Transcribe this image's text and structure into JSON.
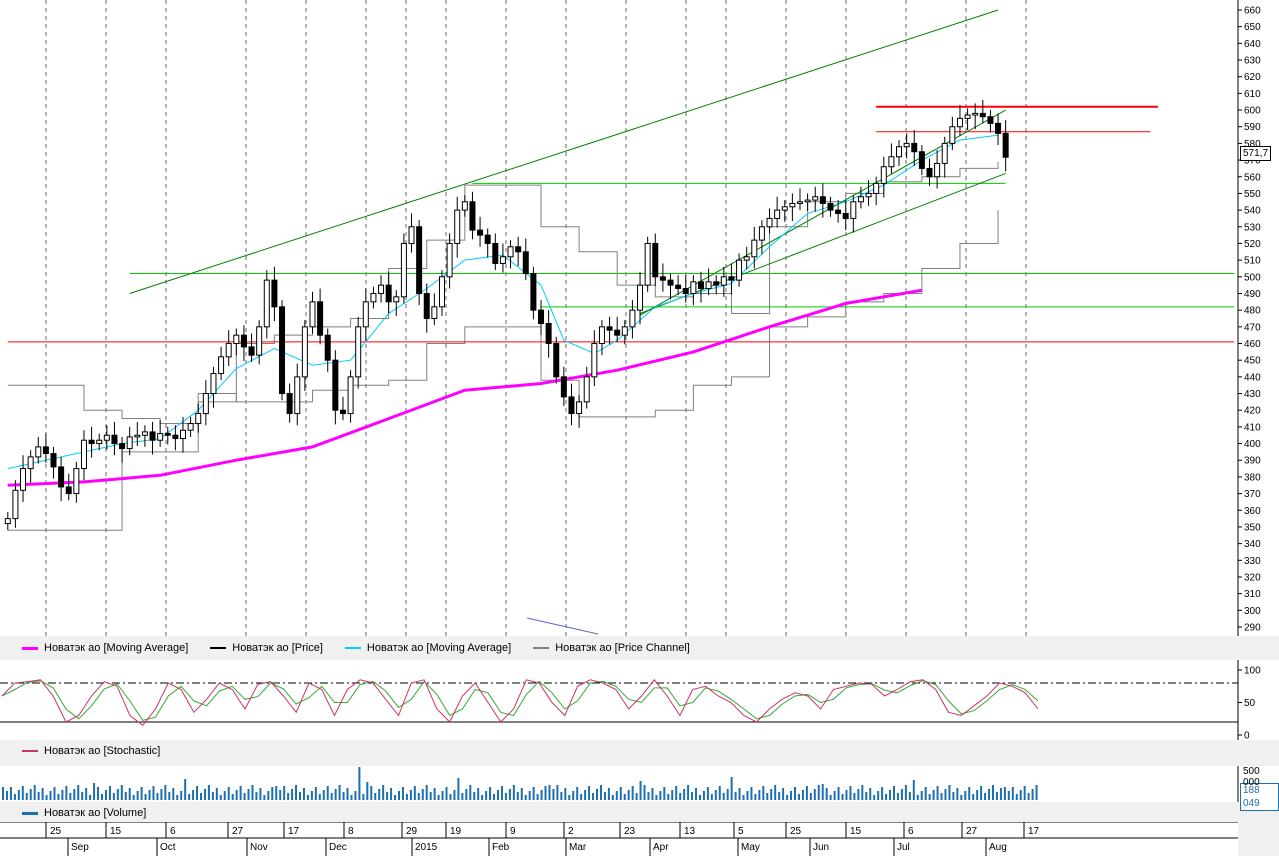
{
  "chart_data": [
    {
      "type": "candlestick",
      "title": "",
      "ylim": [
        285,
        662
      ],
      "y_ticks": [
        290,
        300,
        310,
        320,
        330,
        340,
        350,
        360,
        370,
        380,
        390,
        400,
        410,
        420,
        430,
        440,
        450,
        460,
        470,
        480,
        490,
        500,
        510,
        520,
        530,
        540,
        550,
        560,
        570,
        580,
        590,
        600,
        610,
        620,
        630,
        640,
        650,
        660
      ],
      "last_value_label": "571,7",
      "grid": "vertical dashed",
      "price_series": [
        [
          0,
          355
        ],
        [
          1,
          372
        ],
        [
          2,
          385
        ],
        [
          3,
          392
        ],
        [
          4,
          398
        ],
        [
          5,
          394
        ],
        [
          6,
          386
        ],
        [
          7,
          374
        ],
        [
          8,
          370
        ],
        [
          9,
          385
        ],
        [
          10,
          402
        ],
        [
          11,
          400
        ],
        [
          12,
          402
        ],
        [
          13,
          405
        ],
        [
          14,
          400
        ],
        [
          15,
          397
        ],
        [
          16,
          404
        ],
        [
          17,
          405
        ],
        [
          18,
          407
        ],
        [
          19,
          402
        ],
        [
          20,
          406
        ],
        [
          21,
          405
        ],
        [
          22,
          403
        ],
        [
          23,
          408
        ],
        [
          24,
          412
        ],
        [
          25,
          418
        ],
        [
          26,
          430
        ],
        [
          27,
          442
        ],
        [
          28,
          452
        ],
        [
          29,
          460
        ],
        [
          30,
          465
        ],
        [
          31,
          458
        ],
        [
          32,
          453
        ],
        [
          33,
          470
        ],
        [
          34,
          498
        ],
        [
          35,
          482
        ],
        [
          36,
          430
        ],
        [
          37,
          418
        ],
        [
          38,
          440
        ],
        [
          39,
          470
        ],
        [
          40,
          485
        ],
        [
          41,
          465
        ],
        [
          42,
          450
        ],
        [
          43,
          420
        ],
        [
          44,
          418
        ],
        [
          45,
          440
        ],
        [
          46,
          470
        ],
        [
          47,
          485
        ],
        [
          48,
          490
        ],
        [
          49,
          495
        ],
        [
          50,
          485
        ],
        [
          51,
          488
        ],
        [
          52,
          520
        ],
        [
          53,
          530
        ],
        [
          54,
          490
        ],
        [
          55,
          475
        ],
        [
          56,
          482
        ],
        [
          57,
          500
        ],
        [
          58,
          520
        ],
        [
          59,
          540
        ],
        [
          60,
          545
        ],
        [
          61,
          528
        ],
        [
          62,
          525
        ],
        [
          63,
          520
        ],
        [
          64,
          508
        ],
        [
          65,
          512
        ],
        [
          66,
          518
        ],
        [
          67,
          515
        ],
        [
          68,
          502
        ],
        [
          69,
          480
        ],
        [
          70,
          472
        ],
        [
          71,
          460
        ],
        [
          72,
          440
        ],
        [
          73,
          428
        ],
        [
          74,
          418
        ],
        [
          75,
          425
        ],
        [
          76,
          440
        ],
        [
          77,
          460
        ],
        [
          78,
          470
        ],
        [
          79,
          468
        ],
        [
          80,
          465
        ],
        [
          81,
          470
        ],
        [
          82,
          480
        ],
        [
          83,
          495
        ],
        [
          84,
          520
        ],
        [
          85,
          500
        ],
        [
          86,
          498
        ],
        [
          87,
          495
        ],
        [
          88,
          493
        ],
        [
          89,
          490
        ],
        [
          90,
          497
        ],
        [
          91,
          493
        ],
        [
          92,
          497
        ],
        [
          93,
          495
        ],
        [
          94,
          500
        ],
        [
          95,
          498
        ],
        [
          96,
          510
        ],
        [
          97,
          512
        ],
        [
          98,
          522
        ],
        [
          99,
          530
        ],
        [
          100,
          535
        ],
        [
          101,
          540
        ],
        [
          102,
          542
        ],
        [
          103,
          544
        ],
        [
          104,
          545
        ],
        [
          105,
          546
        ],
        [
          106,
          548
        ],
        [
          107,
          544
        ],
        [
          108,
          540
        ],
        [
          109,
          538
        ],
        [
          110,
          535
        ],
        [
          111,
          545
        ],
        [
          112,
          548
        ],
        [
          113,
          550
        ],
        [
          114,
          556
        ],
        [
          115,
          566
        ],
        [
          116,
          572
        ],
        [
          117,
          578
        ],
        [
          118,
          580
        ],
        [
          119,
          575
        ],
        [
          120,
          565
        ],
        [
          121,
          560
        ],
        [
          122,
          568
        ],
        [
          123,
          580
        ],
        [
          124,
          590
        ],
        [
          125,
          595
        ],
        [
          126,
          597
        ],
        [
          127,
          598
        ],
        [
          128,
          596
        ],
        [
          129,
          592
        ],
        [
          130,
          586
        ],
        [
          131,
          571.7
        ]
      ],
      "moving_average_slow": [
        [
          0,
          375
        ],
        [
          10,
          377
        ],
        [
          20,
          381
        ],
        [
          30,
          390
        ],
        [
          40,
          398
        ],
        [
          50,
          415
        ],
        [
          60,
          432
        ],
        [
          65,
          434
        ],
        [
          70,
          436
        ],
        [
          80,
          444
        ],
        [
          90,
          455
        ],
        [
          100,
          470
        ],
        [
          110,
          484
        ],
        [
          120,
          492
        ]
      ],
      "moving_average_fast": [
        [
          0,
          385
        ],
        [
          5,
          390
        ],
        [
          10,
          395
        ],
        [
          15,
          400
        ],
        [
          20,
          403
        ],
        [
          25,
          420
        ],
        [
          30,
          445
        ],
        [
          35,
          457
        ],
        [
          40,
          447
        ],
        [
          45,
          450
        ],
        [
          50,
          478
        ],
        [
          55,
          493
        ],
        [
          60,
          510
        ],
        [
          65,
          513
        ],
        [
          70,
          495
        ],
        [
          73,
          462
        ],
        [
          77,
          454
        ],
        [
          80,
          462
        ],
        [
          85,
          482
        ],
        [
          90,
          490
        ],
        [
          95,
          496
        ],
        [
          100,
          518
        ],
        [
          105,
          538
        ],
        [
          110,
          545
        ],
        [
          115,
          555
        ],
        [
          120,
          570
        ],
        [
          125,
          582
        ],
        [
          130,
          585
        ]
      ],
      "price_channel_upper": [
        [
          0,
          435
        ],
        [
          10,
          420
        ],
        [
          15,
          415
        ],
        [
          20,
          412
        ],
        [
          25,
          425
        ],
        [
          30,
          460
        ],
        [
          35,
          465
        ],
        [
          40,
          470
        ],
        [
          45,
          475
        ],
        [
          50,
          505
        ],
        [
          55,
          522
        ],
        [
          60,
          555
        ],
        [
          65,
          555
        ],
        [
          70,
          530
        ],
        [
          75,
          515
        ],
        [
          80,
          495
        ],
        [
          85,
          488
        ],
        [
          90,
          490
        ],
        [
          95,
          478
        ],
        [
          100,
          530
        ],
        [
          105,
          545
        ],
        [
          110,
          550
        ],
        [
          115,
          557
        ],
        [
          120,
          560
        ],
        [
          125,
          565
        ],
        [
          130,
          569
        ]
      ],
      "price_channel_lower": [
        [
          0,
          348
        ],
        [
          8,
          348
        ],
        [
          12,
          348
        ],
        [
          15,
          395
        ],
        [
          20,
          395
        ],
        [
          25,
          430
        ],
        [
          30,
          425
        ],
        [
          35,
          425
        ],
        [
          40,
          432
        ],
        [
          45,
          435
        ],
        [
          50,
          438
        ],
        [
          55,
          460
        ],
        [
          60,
          470
        ],
        [
          65,
          470
        ],
        [
          70,
          438
        ],
        [
          75,
          416
        ],
        [
          80,
          416
        ],
        [
          85,
          420
        ],
        [
          90,
          435
        ],
        [
          95,
          440
        ],
        [
          100,
          470
        ],
        [
          105,
          476
        ],
        [
          110,
          485
        ],
        [
          115,
          490
        ],
        [
          120,
          505
        ],
        [
          125,
          520
        ],
        [
          130,
          540
        ]
      ],
      "trendlines": [
        {
          "from": [
            16,
            490
          ],
          "to": [
            130,
            660
          ],
          "color": "#008000"
        },
        {
          "from": [
            83,
            477
          ],
          "to": [
            131,
            600
          ],
          "color": "#008000"
        },
        {
          "from": [
            83,
            478
          ],
          "to": [
            131,
            562
          ],
          "color": "#008000"
        }
      ],
      "horizontal_levels": [
        {
          "y": 602,
          "x_from": 114,
          "x_to": 151,
          "color": "#ff0000"
        },
        {
          "y": 587,
          "x_from": 114,
          "x_to": 150,
          "color": "#ff0000"
        },
        {
          "y": 461,
          "x_from": 0,
          "x_to": 161,
          "color": "#ff0000"
        },
        {
          "y": 556,
          "x_from": 61,
          "x_to": 131,
          "color": "#00cc00"
        },
        {
          "y": 502,
          "x_from": 16,
          "x_to": 161,
          "color": "#00cc00"
        },
        {
          "y": 482,
          "x_from": 70,
          "x_to": 161,
          "color": "#00cc00"
        }
      ],
      "legend": [
        {
          "name": "Новатэк ао [Moving Average]",
          "color": "#ff00ff"
        },
        {
          "name": "Новатэк ао [Price]",
          "color": "#000000"
        },
        {
          "name": "Новатэк ао [Moving Average]",
          "color": "#00ccff"
        },
        {
          "name": "Новатэк ао [Price Channel]",
          "color": "#808080"
        }
      ]
    },
    {
      "type": "line",
      "title": "",
      "ylim": [
        0,
        100
      ],
      "y_ticks": [
        0,
        50,
        100
      ],
      "reference_lines": [
        80,
        20
      ],
      "series_values": [
        60,
        80,
        82,
        85,
        60,
        20,
        30,
        60,
        82,
        75,
        30,
        15,
        40,
        80,
        70,
        35,
        55,
        80,
        70,
        40,
        78,
        82,
        60,
        35,
        80,
        70,
        30,
        70,
        85,
        80,
        55,
        30,
        80,
        85,
        40,
        20,
        60,
        80,
        50,
        20,
        40,
        85,
        80,
        50,
        30,
        75,
        85,
        80,
        70,
        40,
        60,
        85,
        60,
        30,
        70,
        75,
        60,
        50,
        30,
        20,
        40,
        55,
        65,
        60,
        40,
        70,
        75,
        80,
        78,
        60,
        70,
        82,
        85,
        70,
        35,
        30,
        45,
        60,
        80,
        75,
        65,
        40
      ],
      "legend": [
        {
          "name": "Новатэк ао [Stochastic]",
          "color": "#cc3366"
        }
      ]
    },
    {
      "type": "bar",
      "title": "",
      "y_ticks_labels": [
        "500 000"
      ],
      "last_value_label": "188 049",
      "legend": [
        {
          "name": "Новатэк ао [Volume]",
          "color": "#1c6fb0"
        }
      ]
    }
  ],
  "x_axis": {
    "day_labels": [
      "25",
      "15",
      "6",
      "27",
      "17",
      "8",
      "29",
      "19",
      "9",
      "2",
      "23",
      "13",
      "5",
      "25",
      "15",
      "6",
      "27",
      "17"
    ],
    "month_labels": [
      "Sep",
      "Oct",
      "Nov",
      "Dec",
      "2015",
      "Feb",
      "Mar",
      "Apr",
      "May",
      "Jun",
      "Jul",
      "Aug"
    ]
  },
  "colors": {
    "ma_slow": "#ff00ff",
    "ma_fast": "#00ccff",
    "channel": "#808080",
    "trend": "#008000",
    "level_red": "#ff0000",
    "level_green": "#00cc00",
    "stoch_k": "#cc3366",
    "stoch_d": "#33aa33",
    "volume": "#1c6fb0"
  }
}
